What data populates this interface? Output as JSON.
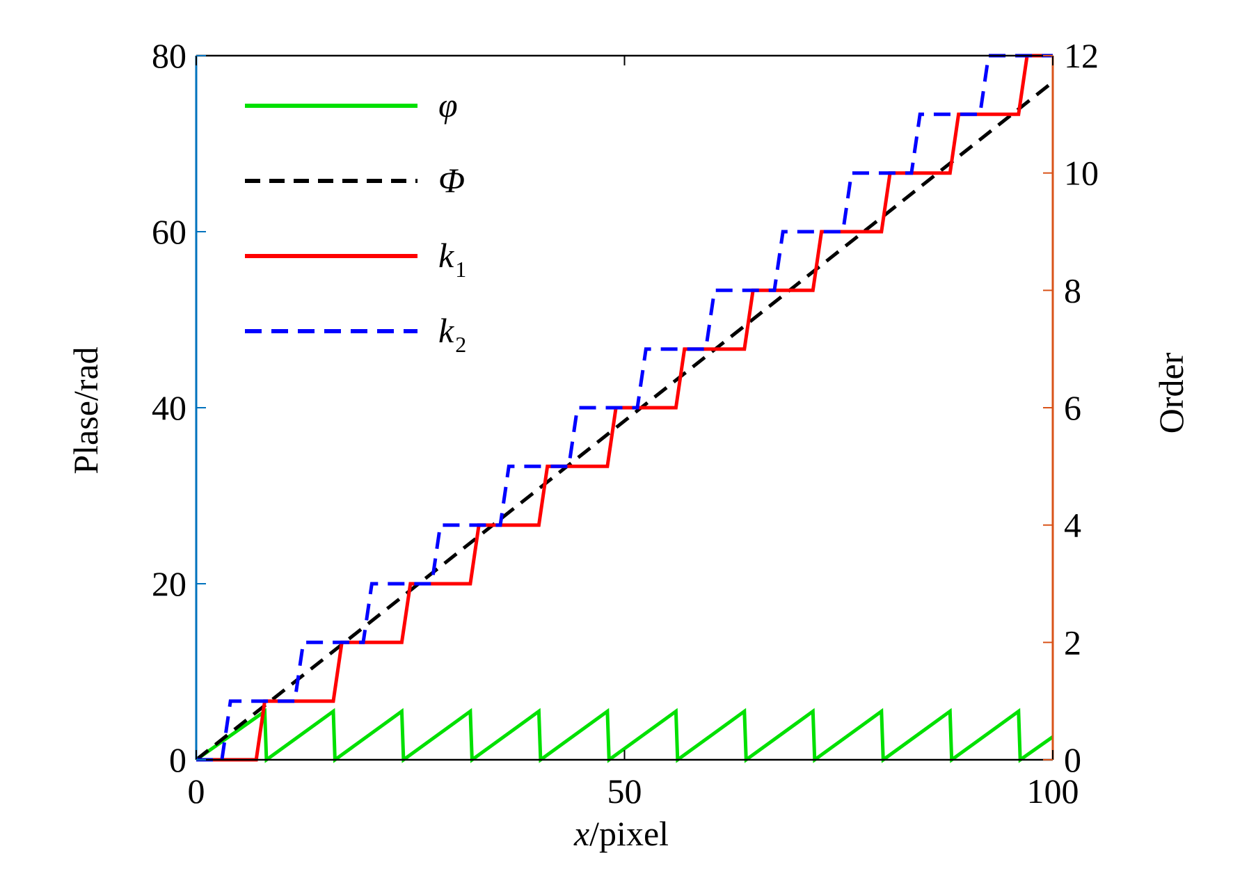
{
  "chart_data": {
    "type": "line",
    "title": "",
    "xlabel": {
      "italic": "x",
      "rest": "/pixel"
    },
    "ylabel_left": "Plase/rad",
    "ylabel_right": "Order",
    "xlim": [
      0,
      100
    ],
    "ylim_left": [
      0,
      80
    ],
    "ylim_right": [
      0,
      12
    ],
    "xticks": [
      0,
      50,
      100
    ],
    "yticks_left": [
      0,
      20,
      40,
      60,
      80
    ],
    "yticks_right": [
      0,
      2,
      4,
      6,
      8,
      10,
      12
    ],
    "grid": false,
    "legend_position": "top-left",
    "colors": {
      "phi": "#00e000",
      "Phi": "#000000",
      "k1": "#ff0000",
      "k2": "#0000ff",
      "left_axis": "#0072bd",
      "right_axis": "#d95319"
    },
    "legend": [
      {
        "key": "phi",
        "label": "φ",
        "sub": "",
        "style": "solid"
      },
      {
        "key": "Phi",
        "label": "Φ",
        "sub": "",
        "style": "dashed"
      },
      {
        "key": "k1",
        "label": "k",
        "sub": "1",
        "style": "solid"
      },
      {
        "key": "k2",
        "label": "k",
        "sub": "2",
        "style": "dashed"
      }
    ],
    "series": [
      {
        "key": "phi",
        "axis": "left",
        "description": "wrapped phase sawtooth",
        "x": [
          0,
          8,
          8.2,
          16,
          16.2,
          24,
          24.2,
          32,
          32.2,
          40,
          40.2,
          48,
          48.2,
          56,
          56.2,
          64,
          64.2,
          72,
          72.2,
          80,
          80.2,
          88,
          88.2,
          96,
          96.2,
          100
        ],
        "y": [
          0,
          5.5,
          0,
          5.5,
          0,
          5.5,
          0,
          5.5,
          0,
          5.5,
          0,
          5.5,
          0,
          5.5,
          0,
          5.5,
          0,
          5.5,
          0,
          5.5,
          0,
          5.5,
          0,
          5.5,
          0,
          2.6
        ]
      },
      {
        "key": "Phi",
        "axis": "left",
        "description": "unwrapped phase",
        "x": [
          0,
          100
        ],
        "y": [
          0,
          77
        ]
      },
      {
        "key": "k1",
        "axis": "right",
        "x": [
          0,
          7,
          8,
          16,
          17,
          24,
          25,
          32,
          33,
          40,
          41,
          48,
          49,
          56,
          57,
          64,
          65,
          72,
          73,
          80,
          81,
          88,
          89,
          96,
          97,
          100
        ],
        "y": [
          0,
          0,
          1,
          1,
          2,
          2,
          3,
          3,
          4,
          4,
          5,
          5,
          6,
          6,
          7,
          7,
          8,
          8,
          9,
          9,
          10,
          10,
          11,
          11,
          12,
          12
        ]
      },
      {
        "key": "k2",
        "axis": "right",
        "x": [
          0,
          3,
          4,
          11.5,
          12.5,
          19.5,
          20.5,
          27.5,
          28.5,
          35.5,
          36.5,
          43.5,
          44.5,
          51.5,
          52.5,
          59.5,
          60.5,
          67.5,
          68.5,
          75.5,
          76.5,
          83.5,
          84.5,
          91.5,
          92.5,
          100
        ],
        "y": [
          0,
          0,
          1,
          1,
          2,
          2,
          3,
          3,
          4,
          4,
          5,
          5,
          6,
          6,
          7,
          7,
          8,
          8,
          9,
          9,
          10,
          10,
          11,
          11,
          12,
          12
        ]
      }
    ]
  }
}
